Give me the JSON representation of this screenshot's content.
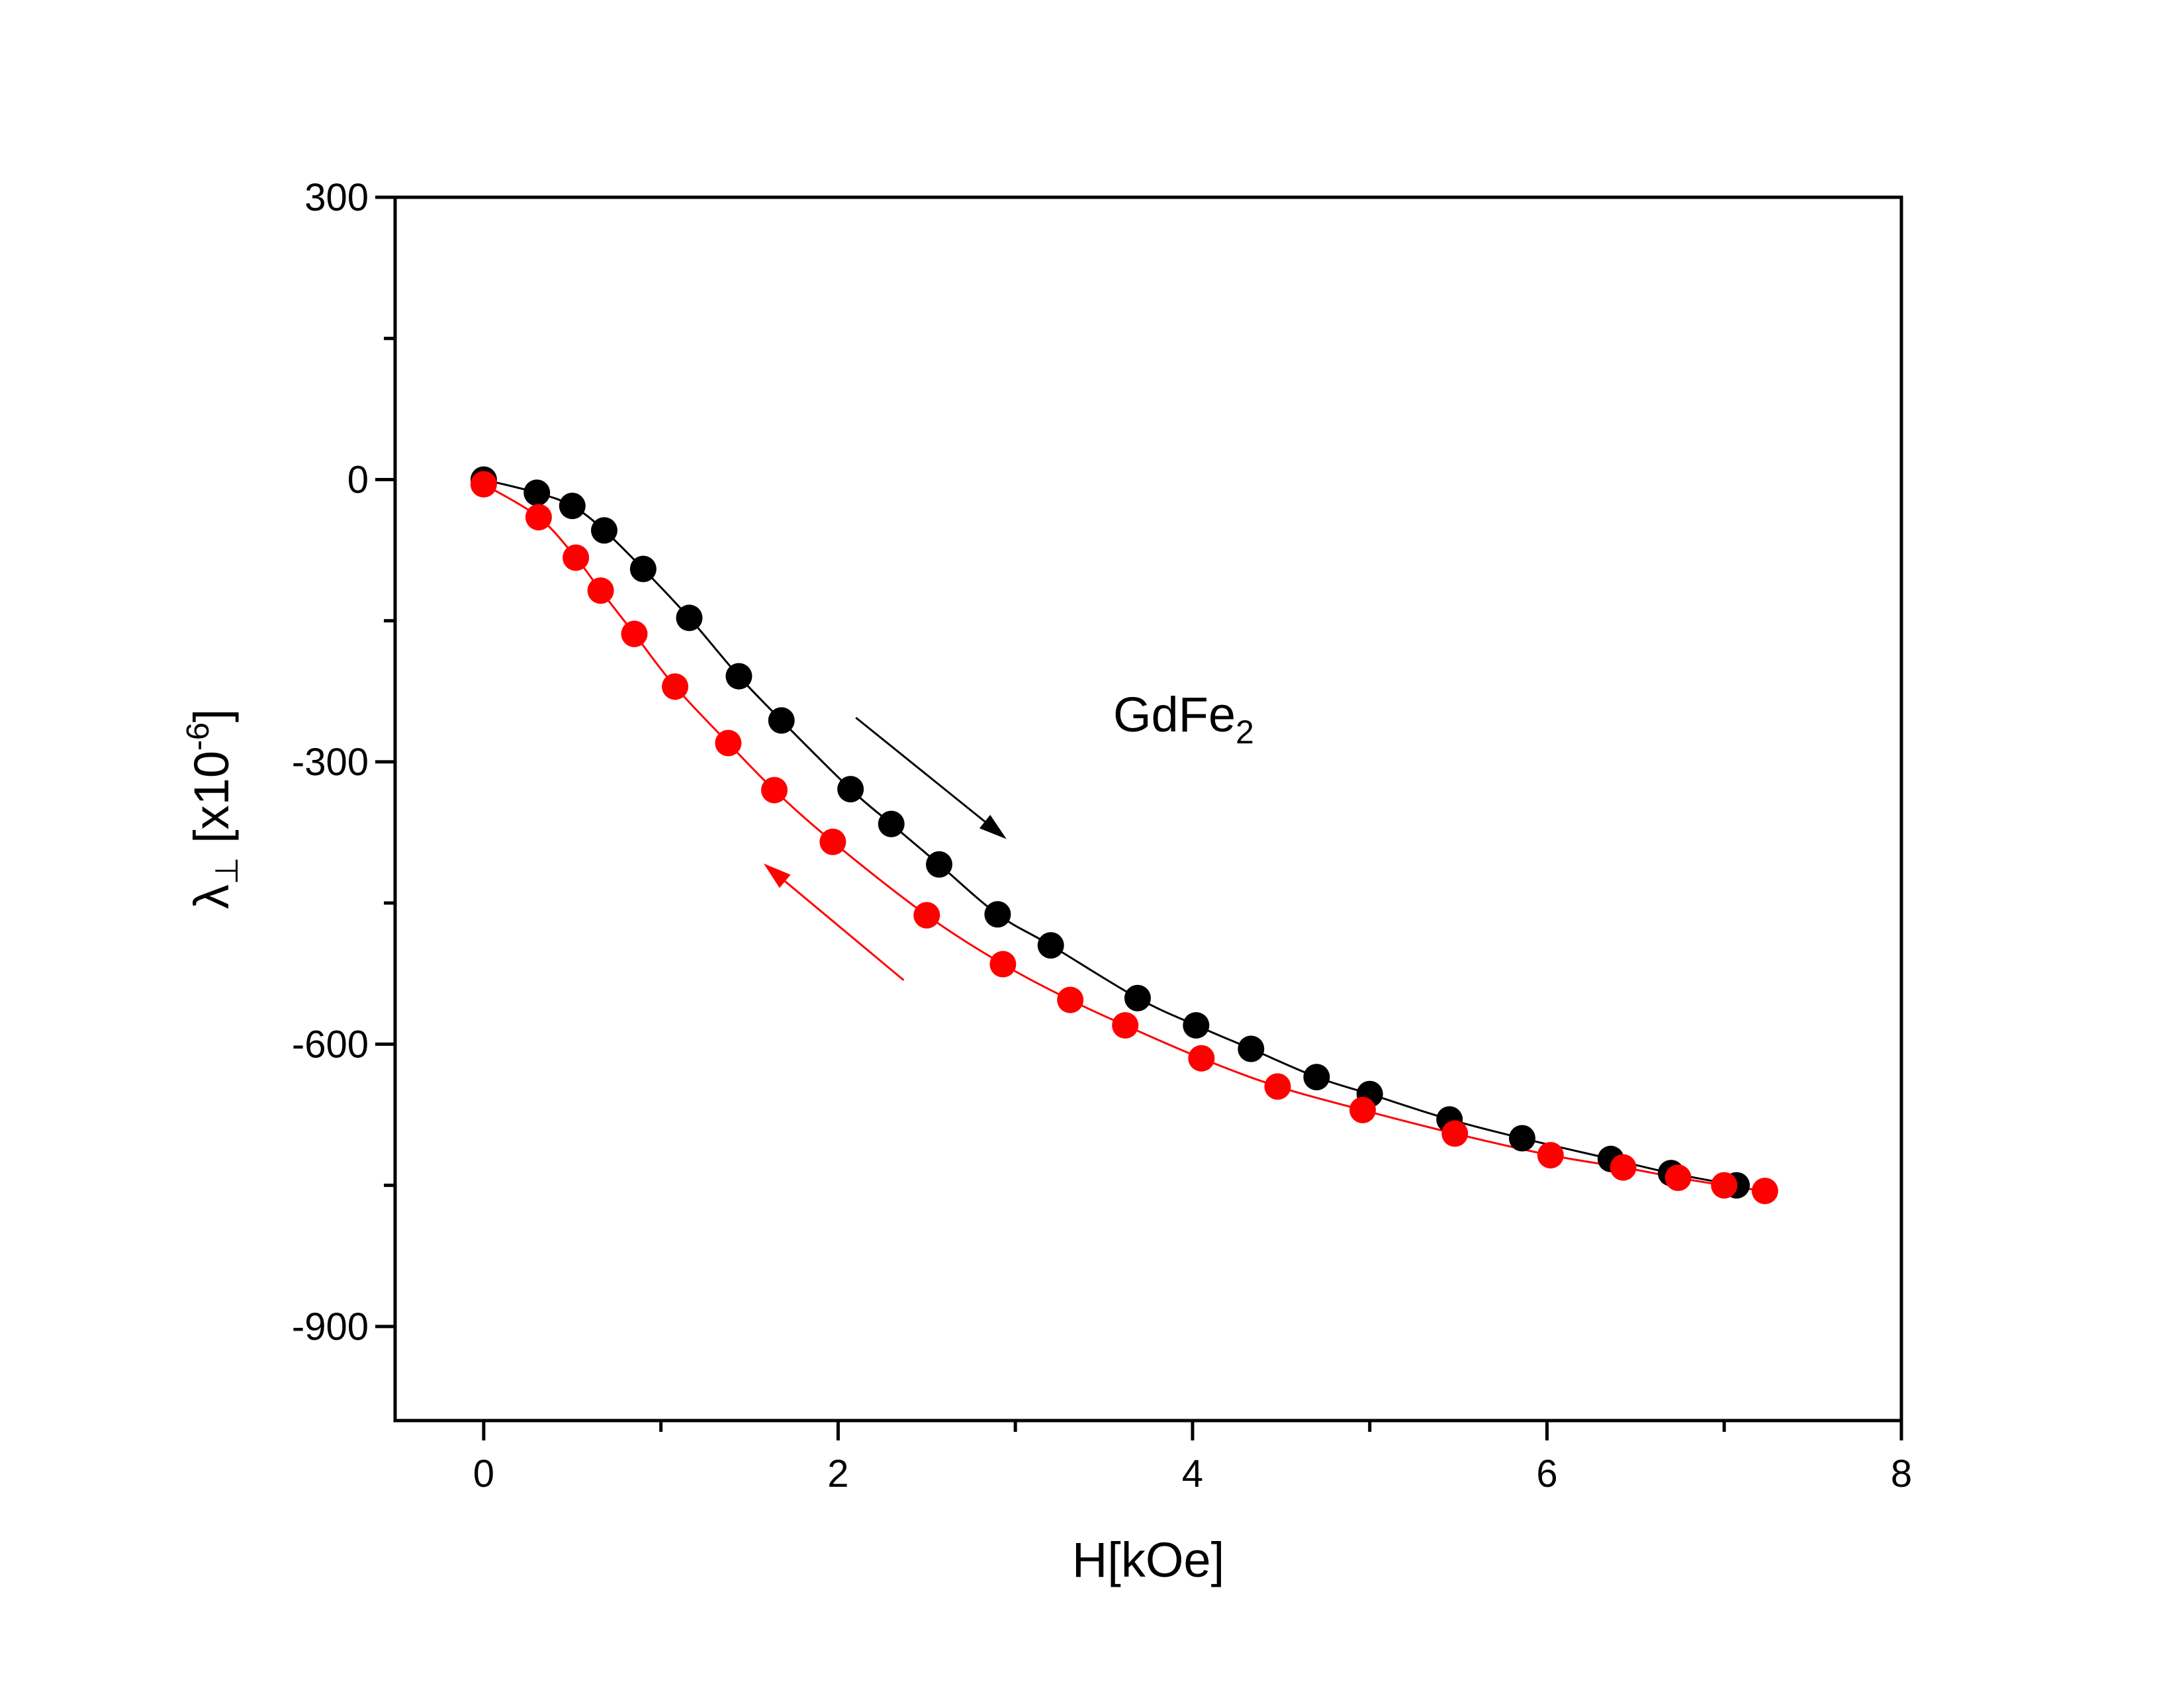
{
  "chart_data": {
    "type": "scatter",
    "title": "",
    "xlabel": "H[kOe]",
    "ylabel": {
      "main": "λ",
      "subscript": "⊥",
      "bracket_open": " [x10",
      "exponent": "-6",
      "bracket_close": "]"
    },
    "xlim": [
      -0.5,
      8
    ],
    "ylim": [
      -1000,
      300
    ],
    "x_ticks": [
      0,
      2,
      4,
      6,
      8
    ],
    "x_tick_labels": [
      "0",
      "2",
      "4",
      "6",
      "8"
    ],
    "x_minor_ticks": [
      1,
      3,
      5,
      7
    ],
    "y_ticks": [
      300,
      0,
      -300,
      -600,
      -900
    ],
    "y_tick_labels": [
      "300",
      "0",
      "-300",
      "-600",
      "-900"
    ],
    "y_minor_ticks": [
      150,
      -150,
      -450,
      -750
    ],
    "grid": false,
    "legend": "none",
    "annotation": {
      "text": "GdFe",
      "subscript": "2",
      "x": 4.0,
      "y": -250
    },
    "series": [
      {
        "color": "#000000",
        "direction": "increasing-field",
        "arrow": {
          "from": [
            2.1,
            -253
          ],
          "to": [
            2.95,
            -382
          ]
        },
        "x": [
          0,
          0.3,
          0.5,
          0.68,
          0.9,
          1.16,
          1.44,
          1.68,
          2.07,
          2.3,
          2.57,
          2.9,
          3.2,
          3.69,
          4.02,
          4.33,
          4.7,
          5.0,
          5.45,
          5.86,
          6.36,
          6.7,
          7.07
        ],
        "y": [
          0,
          -14,
          -28,
          -54,
          -95,
          -147,
          -209,
          -256,
          -329,
          -366,
          -409,
          -462,
          -495,
          -551,
          -580,
          -605,
          -635,
          -653,
          -680,
          -700,
          -722,
          -737,
          -750
        ]
      },
      {
        "color": "#ff0000",
        "direction": "decreasing-field",
        "arrow": {
          "from": [
            2.37,
            -532
          ],
          "to": [
            1.58,
            -408
          ]
        },
        "x": [
          0,
          0.31,
          0.52,
          0.66,
          0.85,
          1.08,
          1.38,
          1.64,
          1.97,
          2.5,
          2.93,
          3.31,
          3.62,
          4.05,
          4.48,
          4.96,
          5.48,
          6.02,
          6.43,
          6.74,
          7.0,
          7.23
        ],
        "y": [
          -5,
          -40,
          -83,
          -118,
          -164,
          -220,
          -280,
          -330,
          -385,
          -463,
          -515,
          -553,
          -580,
          -615,
          -645,
          -670,
          -695,
          -718,
          -731,
          -742,
          -750,
          -756
        ]
      }
    ]
  }
}
